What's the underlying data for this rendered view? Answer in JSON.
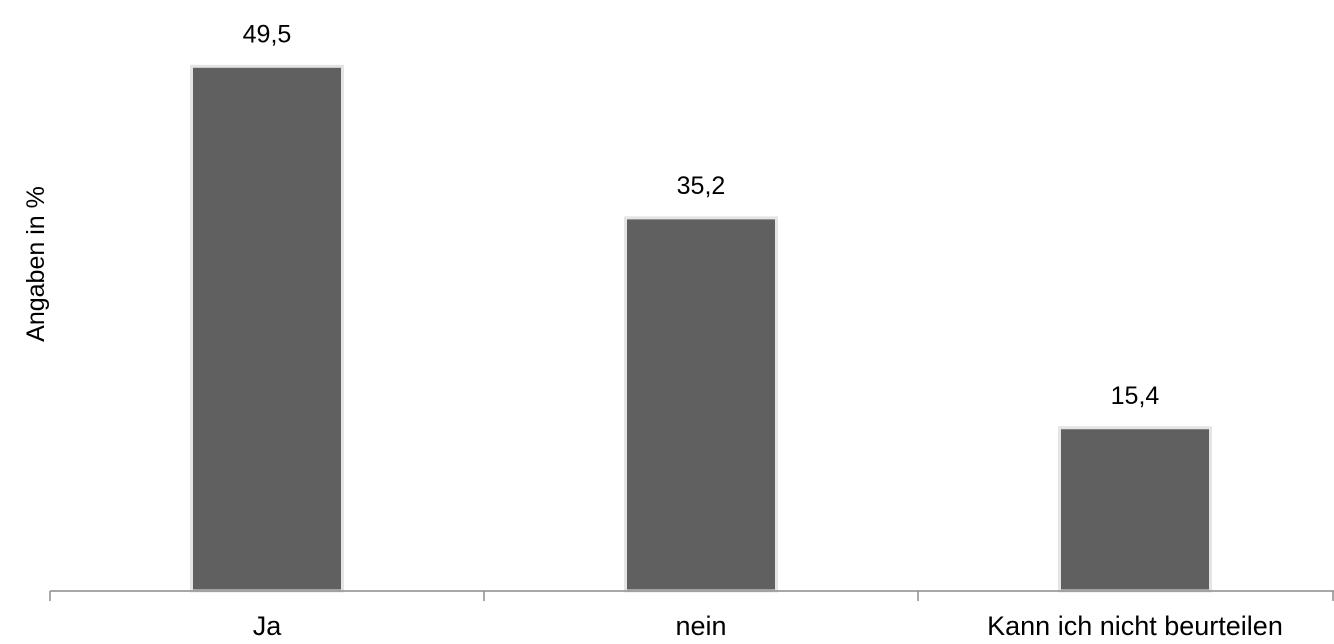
{
  "chart_data": {
    "type": "bar",
    "categories": [
      "Ja",
      "nein",
      "Kann ich nicht beurteilen"
    ],
    "values": [
      49.5,
      35.2,
      15.4
    ],
    "value_labels": [
      "49,5",
      "35,2",
      "15,4"
    ],
    "title": "",
    "xlabel": "",
    "ylabel": "Angaben in %",
    "ylim": [
      0,
      50
    ],
    "grid": false,
    "legend": "none",
    "colors": {
      "bar": "#606060",
      "bar_edge": "#e4e4e4",
      "axis": "#8c8c8c",
      "text": "#000000"
    }
  }
}
